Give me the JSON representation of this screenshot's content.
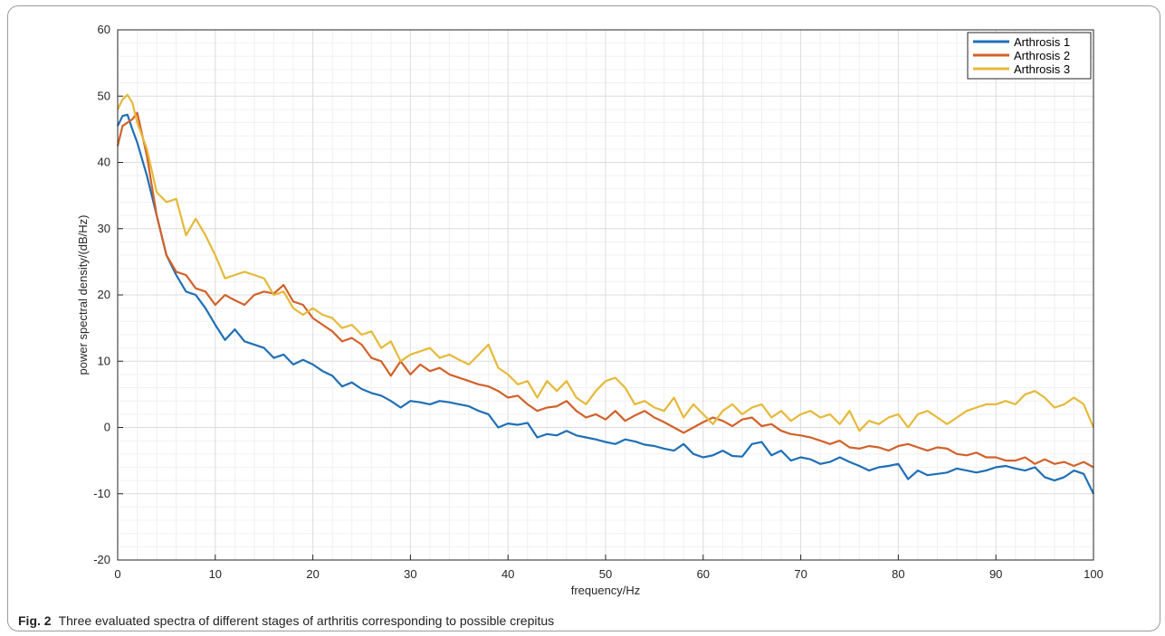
{
  "caption": {
    "label": "Fig. 2",
    "text": "Three evaluated spectra of different stages of arthritis corresponding to possible crepitus"
  },
  "chart_data": {
    "type": "line",
    "title": "",
    "xlabel": "frequency/Hz",
    "ylabel": "power spectral density/(dB/Hz)",
    "xlim": [
      0,
      100
    ],
    "ylim": [
      -20,
      60
    ],
    "xticks": [
      0,
      10,
      20,
      30,
      40,
      50,
      60,
      70,
      80,
      90,
      100
    ],
    "yticks": [
      -20,
      -10,
      0,
      10,
      20,
      30,
      40,
      50,
      60
    ],
    "grid": true,
    "minor_grid": true,
    "legend_position": "top-right",
    "series": [
      {
        "name": "Arthrosis 1",
        "color": "#1f6fb5",
        "x": [
          0,
          0.5,
          1,
          1.5,
          2,
          3,
          4,
          5,
          6,
          7,
          8,
          9,
          10,
          11,
          12,
          13,
          14,
          15,
          16,
          17,
          18,
          19,
          20,
          21,
          22,
          23,
          24,
          25,
          26,
          27,
          28,
          29,
          30,
          31,
          32,
          33,
          34,
          35,
          36,
          37,
          38,
          39,
          40,
          41,
          42,
          43,
          44,
          45,
          46,
          47,
          48,
          49,
          50,
          51,
          52,
          53,
          54,
          55,
          56,
          57,
          58,
          59,
          60,
          61,
          62,
          63,
          64,
          65,
          66,
          67,
          68,
          69,
          70,
          71,
          72,
          73,
          74,
          75,
          76,
          77,
          78,
          79,
          80,
          81,
          82,
          83,
          84,
          85,
          86,
          87,
          88,
          89,
          90,
          91,
          92,
          93,
          94,
          95,
          96,
          97,
          98,
          99,
          100
        ],
        "y": [
          45.5,
          47,
          47.2,
          45,
          43,
          38,
          32,
          26,
          23,
          20.5,
          20,
          18,
          15.5,
          13.2,
          14.8,
          13,
          12.5,
          12,
          10.5,
          11,
          9.5,
          10.2,
          9.5,
          8.5,
          7.8,
          6.2,
          6.8,
          5.8,
          5.2,
          4.8,
          4,
          3,
          4,
          3.8,
          3.5,
          4,
          3.8,
          3.5,
          3.2,
          2.5,
          2,
          0,
          0.6,
          0.4,
          0.7,
          -1.5,
          -1,
          -1.2,
          -0.5,
          -1.2,
          -1.5,
          -1.8,
          -2.2,
          -2.5,
          -1.8,
          -2.1,
          -2.6,
          -2.8,
          -3.2,
          -3.5,
          -2.5,
          -4,
          -4.5,
          -4.2,
          -3.5,
          -4.3,
          -4.4,
          -2.5,
          -2.2,
          -4.2,
          -3.5,
          -5,
          -4.5,
          -4.8,
          -5.5,
          -5.2,
          -4.5,
          -5.2,
          -5.8,
          -6.5,
          -6,
          -5.8,
          -5.5,
          -7.8,
          -6.5,
          -7.2,
          -7,
          -6.8,
          -6.2,
          -6.5,
          -6.8,
          -6.5,
          -6,
          -5.8,
          -6.2,
          -6.5,
          -6,
          -7.5,
          -8,
          -7.5,
          -6.5,
          -7,
          -10
        ]
      },
      {
        "name": "Arthrosis 2",
        "color": "#d2612a",
        "x": [
          0,
          0.5,
          1,
          1.5,
          2,
          3,
          4,
          5,
          6,
          7,
          8,
          9,
          10,
          11,
          12,
          13,
          14,
          15,
          16,
          17,
          18,
          19,
          20,
          21,
          22,
          23,
          24,
          25,
          26,
          27,
          28,
          29,
          30,
          31,
          32,
          33,
          34,
          35,
          36,
          37,
          38,
          39,
          40,
          41,
          42,
          43,
          44,
          45,
          46,
          47,
          48,
          49,
          50,
          51,
          52,
          53,
          54,
          55,
          56,
          57,
          58,
          59,
          60,
          61,
          62,
          63,
          64,
          65,
          66,
          67,
          68,
          69,
          70,
          71,
          72,
          73,
          74,
          75,
          76,
          77,
          78,
          79,
          80,
          81,
          82,
          83,
          84,
          85,
          86,
          87,
          88,
          89,
          90,
          91,
          92,
          93,
          94,
          95,
          96,
          97,
          98,
          99,
          100
        ],
        "y": [
          42.5,
          45.5,
          46,
          46.5,
          47.5,
          41,
          32,
          26,
          23.5,
          23,
          21,
          20.5,
          18.5,
          20,
          19.2,
          18.5,
          20,
          20.5,
          20.2,
          21.5,
          19,
          18.5,
          16.5,
          15.5,
          14.5,
          13,
          13.5,
          12.5,
          10.5,
          10,
          7.8,
          10,
          8,
          9.5,
          8.5,
          9,
          8,
          7.5,
          7,
          6.5,
          6.2,
          5.5,
          4.5,
          4.8,
          3.5,
          2.5,
          3,
          3.2,
          4,
          2.5,
          1.5,
          2,
          1.2,
          2.5,
          1,
          1.8,
          2.5,
          1.5,
          0.8,
          0,
          -0.8,
          0,
          0.8,
          1.5,
          1,
          0.2,
          1.2,
          1.5,
          0.2,
          0.5,
          -0.5,
          -1,
          -1.2,
          -1.5,
          -2,
          -2.5,
          -2,
          -3,
          -3.2,
          -2.8,
          -3,
          -3.5,
          -2.8,
          -2.5,
          -3,
          -3.5,
          -3,
          -3.2,
          -4,
          -4.2,
          -3.8,
          -4.5,
          -4.5,
          -5,
          -5,
          -4.5,
          -5.5,
          -4.8,
          -5.5,
          -5.2,
          -5.8,
          -5.2,
          -6
        ]
      },
      {
        "name": "Arthrosis 3",
        "color": "#e6b93a",
        "x": [
          0,
          0.5,
          1,
          1.5,
          2,
          3,
          4,
          5,
          6,
          7,
          8,
          9,
          10,
          11,
          12,
          13,
          14,
          15,
          16,
          17,
          18,
          19,
          20,
          21,
          22,
          23,
          24,
          25,
          26,
          27,
          28,
          29,
          30,
          31,
          32,
          33,
          34,
          35,
          36,
          37,
          38,
          39,
          40,
          41,
          42,
          43,
          44,
          45,
          46,
          47,
          48,
          49,
          50,
          51,
          52,
          53,
          54,
          55,
          56,
          57,
          58,
          59,
          60,
          61,
          62,
          63,
          64,
          65,
          66,
          67,
          68,
          69,
          70,
          71,
          72,
          73,
          74,
          75,
          76,
          77,
          78,
          79,
          80,
          81,
          82,
          83,
          84,
          85,
          86,
          87,
          88,
          89,
          90,
          91,
          92,
          93,
          94,
          95,
          96,
          97,
          98,
          99,
          100
        ],
        "y": [
          48,
          49.5,
          50.2,
          49,
          46,
          42,
          35.5,
          34,
          34.5,
          29,
          31.5,
          29,
          26,
          22.5,
          23,
          23.5,
          23,
          22.5,
          20,
          20.5,
          18,
          17,
          18,
          17,
          16.5,
          15,
          15.5,
          14,
          14.5,
          12,
          13,
          10,
          11,
          11.5,
          12,
          10.5,
          11,
          10.2,
          9.5,
          11,
          12.5,
          9,
          8,
          6.5,
          7,
          4.5,
          7,
          5.5,
          7,
          4.5,
          3.5,
          5.5,
          7,
          7.5,
          6,
          3.5,
          4,
          3,
          2.5,
          4.5,
          1.5,
          3.5,
          2,
          0.5,
          2.5,
          3.5,
          2,
          3,
          3.5,
          1.5,
          2.5,
          1,
          2,
          2.5,
          1.5,
          2,
          0.5,
          2.5,
          -0.5,
          1,
          0.5,
          1.5,
          2,
          0,
          2,
          2.5,
          1.5,
          0.5,
          1.5,
          2.5,
          3,
          3.5,
          3.5,
          4,
          3.5,
          5,
          5.5,
          4.5,
          3,
          3.5,
          4.5,
          3.5,
          0
        ]
      }
    ]
  }
}
